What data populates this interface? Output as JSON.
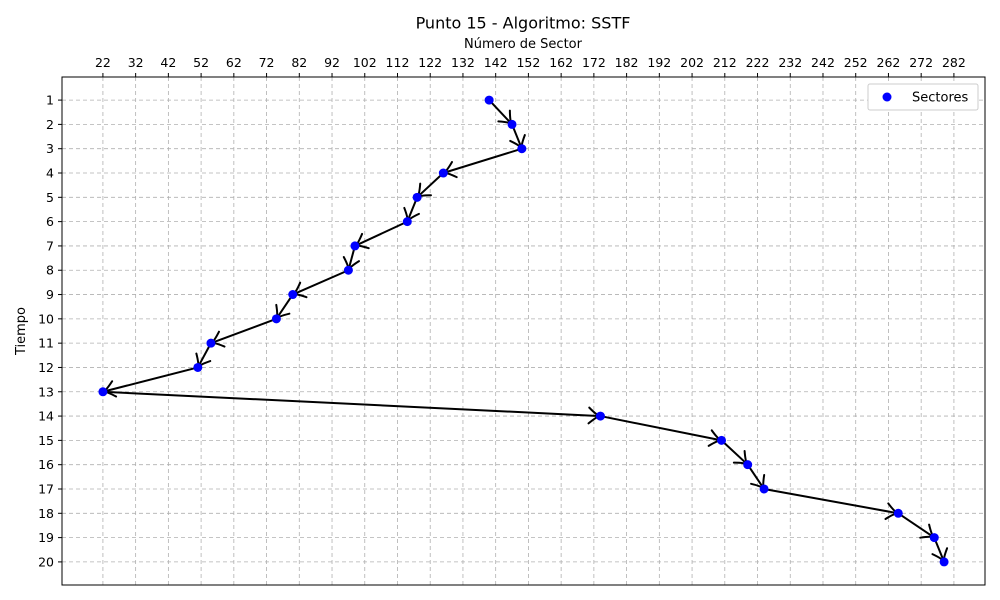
{
  "chart_data": {
    "type": "scatter",
    "title": "Punto 15 - Algoritmo: SSTF",
    "xlabel": "Número de Sector",
    "ylabel": "Tiempo",
    "x_axis_position": "top",
    "y_axis_inverted": true,
    "x_ticks": [
      22,
      32,
      42,
      52,
      62,
      72,
      82,
      92,
      102,
      112,
      122,
      132,
      142,
      152,
      162,
      172,
      182,
      192,
      202,
      212,
      222,
      232,
      242,
      252,
      262,
      272,
      282
    ],
    "y_ticks": [
      1,
      2,
      3,
      4,
      5,
      6,
      7,
      8,
      9,
      10,
      11,
      12,
      13,
      14,
      15,
      16,
      17,
      18,
      19,
      20
    ],
    "xlim": [
      9.5,
      291.5
    ],
    "ylim": [
      20.95,
      0.05
    ],
    "grid": true,
    "legend_position": "top-right",
    "series": [
      {
        "name": "Sectores",
        "color": "#0000ff",
        "points": [
          {
            "x": 140,
            "y": 1
          },
          {
            "x": 147,
            "y": 2
          },
          {
            "x": 150,
            "y": 3
          },
          {
            "x": 126,
            "y": 4
          },
          {
            "x": 118,
            "y": 5
          },
          {
            "x": 115,
            "y": 6
          },
          {
            "x": 99,
            "y": 7
          },
          {
            "x": 97,
            "y": 8
          },
          {
            "x": 80,
            "y": 9
          },
          {
            "x": 75,
            "y": 10
          },
          {
            "x": 55,
            "y": 11
          },
          {
            "x": 51,
            "y": 12
          },
          {
            "x": 22,
            "y": 13
          },
          {
            "x": 174,
            "y": 14
          },
          {
            "x": 211,
            "y": 15
          },
          {
            "x": 219,
            "y": 16
          },
          {
            "x": 224,
            "y": 17
          },
          {
            "x": 265,
            "y": 18
          },
          {
            "x": 276,
            "y": 19
          },
          {
            "x": 279,
            "y": 20
          }
        ]
      }
    ],
    "path_color": "#000000"
  }
}
